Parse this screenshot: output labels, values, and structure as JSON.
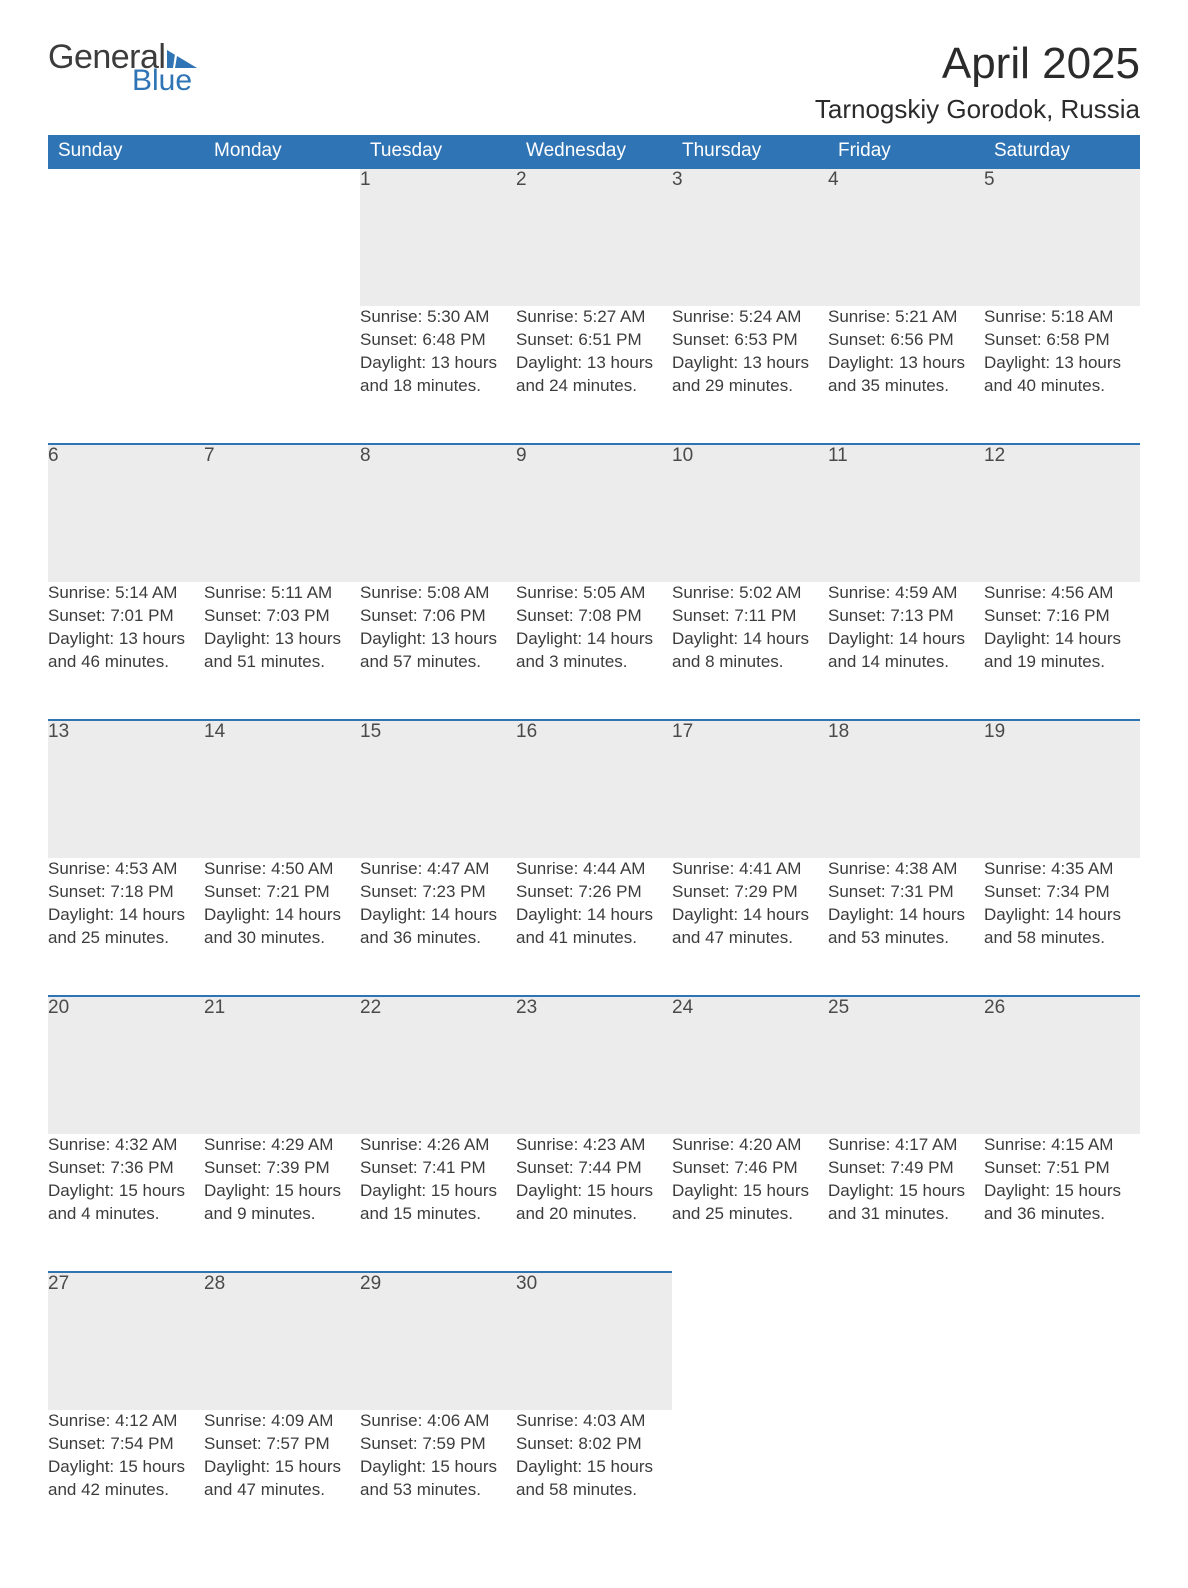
{
  "logo": {
    "word1": "General",
    "word2": "Blue"
  },
  "title": "April 2025",
  "location": "Tarnogskiy Gorodok, Russia",
  "colors": {
    "header_bg": "#2f74b5",
    "header_text": "#ffffff",
    "daynum_bg": "#ececec",
    "row_border": "#2f74b5",
    "text": "#3c3c3c",
    "logo_blue": "#2f74b5",
    "page_bg": "#ffffff"
  },
  "typography": {
    "title_fontsize": 44,
    "location_fontsize": 26,
    "weekday_fontsize": 19,
    "daynum_fontsize": 19,
    "cell_fontsize": 17
  },
  "weekdays": [
    "Sunday",
    "Monday",
    "Tuesday",
    "Wednesday",
    "Thursday",
    "Friday",
    "Saturday"
  ],
  "weeks": [
    [
      null,
      null,
      {
        "n": "1",
        "sr": "5:30 AM",
        "ss": "6:48 PM",
        "dl": "13 hours and 18 minutes."
      },
      {
        "n": "2",
        "sr": "5:27 AM",
        "ss": "6:51 PM",
        "dl": "13 hours and 24 minutes."
      },
      {
        "n": "3",
        "sr": "5:24 AM",
        "ss": "6:53 PM",
        "dl": "13 hours and 29 minutes."
      },
      {
        "n": "4",
        "sr": "5:21 AM",
        "ss": "6:56 PM",
        "dl": "13 hours and 35 minutes."
      },
      {
        "n": "5",
        "sr": "5:18 AM",
        "ss": "6:58 PM",
        "dl": "13 hours and 40 minutes."
      }
    ],
    [
      {
        "n": "6",
        "sr": "5:14 AM",
        "ss": "7:01 PM",
        "dl": "13 hours and 46 minutes."
      },
      {
        "n": "7",
        "sr": "5:11 AM",
        "ss": "7:03 PM",
        "dl": "13 hours and 51 minutes."
      },
      {
        "n": "8",
        "sr": "5:08 AM",
        "ss": "7:06 PM",
        "dl": "13 hours and 57 minutes."
      },
      {
        "n": "9",
        "sr": "5:05 AM",
        "ss": "7:08 PM",
        "dl": "14 hours and 3 minutes."
      },
      {
        "n": "10",
        "sr": "5:02 AM",
        "ss": "7:11 PM",
        "dl": "14 hours and 8 minutes."
      },
      {
        "n": "11",
        "sr": "4:59 AM",
        "ss": "7:13 PM",
        "dl": "14 hours and 14 minutes."
      },
      {
        "n": "12",
        "sr": "4:56 AM",
        "ss": "7:16 PM",
        "dl": "14 hours and 19 minutes."
      }
    ],
    [
      {
        "n": "13",
        "sr": "4:53 AM",
        "ss": "7:18 PM",
        "dl": "14 hours and 25 minutes."
      },
      {
        "n": "14",
        "sr": "4:50 AM",
        "ss": "7:21 PM",
        "dl": "14 hours and 30 minutes."
      },
      {
        "n": "15",
        "sr": "4:47 AM",
        "ss": "7:23 PM",
        "dl": "14 hours and 36 minutes."
      },
      {
        "n": "16",
        "sr": "4:44 AM",
        "ss": "7:26 PM",
        "dl": "14 hours and 41 minutes."
      },
      {
        "n": "17",
        "sr": "4:41 AM",
        "ss": "7:29 PM",
        "dl": "14 hours and 47 minutes."
      },
      {
        "n": "18",
        "sr": "4:38 AM",
        "ss": "7:31 PM",
        "dl": "14 hours and 53 minutes."
      },
      {
        "n": "19",
        "sr": "4:35 AM",
        "ss": "7:34 PM",
        "dl": "14 hours and 58 minutes."
      }
    ],
    [
      {
        "n": "20",
        "sr": "4:32 AM",
        "ss": "7:36 PM",
        "dl": "15 hours and 4 minutes."
      },
      {
        "n": "21",
        "sr": "4:29 AM",
        "ss": "7:39 PM",
        "dl": "15 hours and 9 minutes."
      },
      {
        "n": "22",
        "sr": "4:26 AM",
        "ss": "7:41 PM",
        "dl": "15 hours and 15 minutes."
      },
      {
        "n": "23",
        "sr": "4:23 AM",
        "ss": "7:44 PM",
        "dl": "15 hours and 20 minutes."
      },
      {
        "n": "24",
        "sr": "4:20 AM",
        "ss": "7:46 PM",
        "dl": "15 hours and 25 minutes."
      },
      {
        "n": "25",
        "sr": "4:17 AM",
        "ss": "7:49 PM",
        "dl": "15 hours and 31 minutes."
      },
      {
        "n": "26",
        "sr": "4:15 AM",
        "ss": "7:51 PM",
        "dl": "15 hours and 36 minutes."
      }
    ],
    [
      {
        "n": "27",
        "sr": "4:12 AM",
        "ss": "7:54 PM",
        "dl": "15 hours and 42 minutes."
      },
      {
        "n": "28",
        "sr": "4:09 AM",
        "ss": "7:57 PM",
        "dl": "15 hours and 47 minutes."
      },
      {
        "n": "29",
        "sr": "4:06 AM",
        "ss": "7:59 PM",
        "dl": "15 hours and 53 minutes."
      },
      {
        "n": "30",
        "sr": "4:03 AM",
        "ss": "8:02 PM",
        "dl": "15 hours and 58 minutes."
      },
      null,
      null,
      null
    ]
  ],
  "labels": {
    "sunrise": "Sunrise: ",
    "sunset": "Sunset: ",
    "daylight": "Daylight: "
  }
}
